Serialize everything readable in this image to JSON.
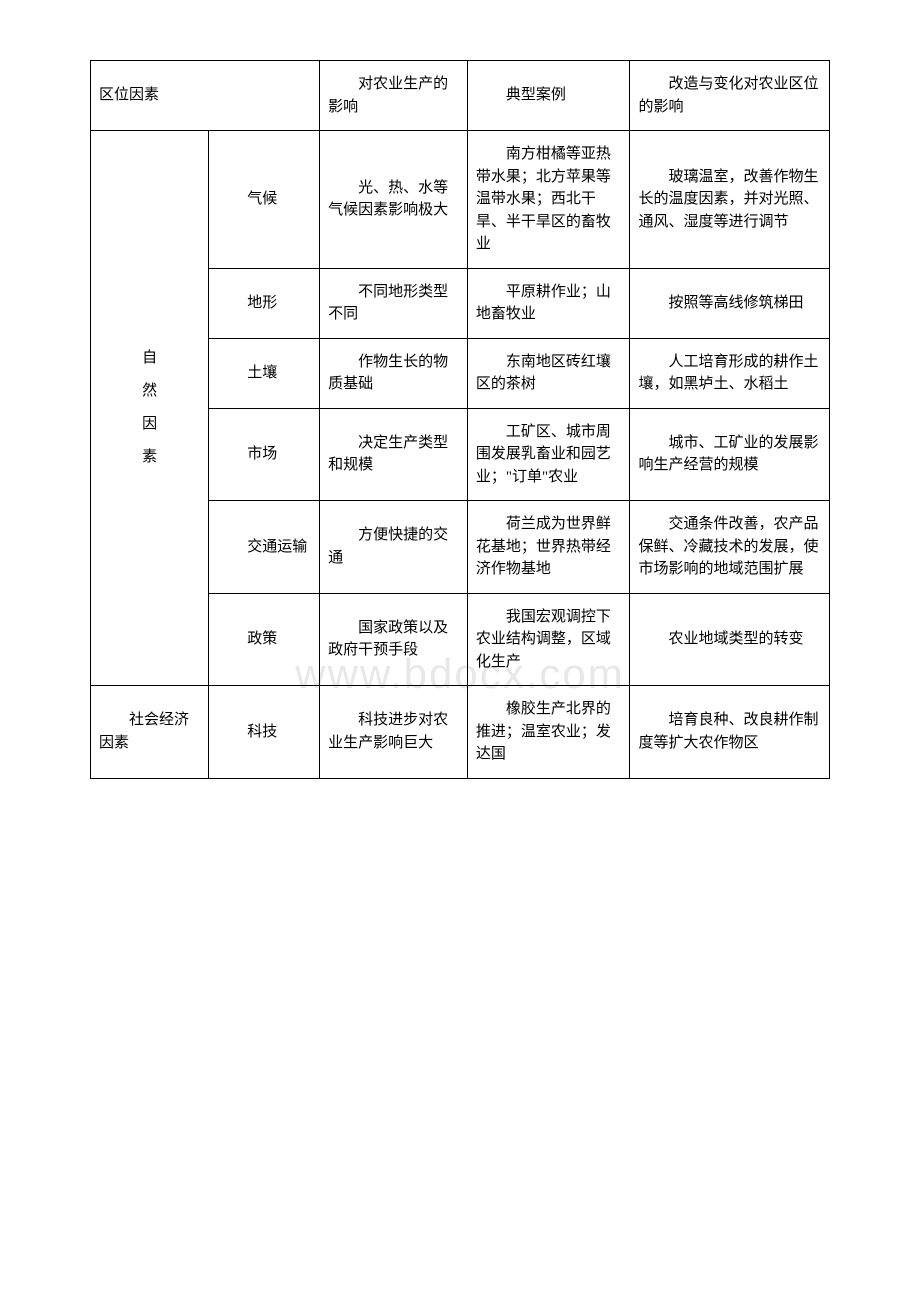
{
  "table": {
    "columns": {
      "col1_width": "16%",
      "col2_width": "15%",
      "col3_width": "20%",
      "col4_width": "22%",
      "col5_width": "27%"
    },
    "header": {
      "c12": "区位因素",
      "c3": "　　对农业生产的影响",
      "c4": "　　典型案例",
      "c5": "　　改造与变化对农业区位的影响"
    },
    "group1_label": "自\n然\n因\n素",
    "group2_label": "　　社会经济因素",
    "rows": [
      {
        "c2": "　　气候",
        "c3": "　　光、热、水等气候因素影响极大",
        "c4": "　　南方柑橘等亚热带水果；北方苹果等温带水果；西北干旱、半干旱区的畜牧业",
        "c5": "　　玻璃温室，改善作物生长的温度因素，并对光照、通风、湿度等进行调节"
      },
      {
        "c2": "　　地形",
        "c3": "　　不同地形类型不同",
        "c4": "　　平原耕作业；山地畜牧业",
        "c5": "　　按照等高线修筑梯田"
      },
      {
        "c2": "　　土壤",
        "c3": "　　作物生长的物质基础",
        "c4": "　　东南地区砖红壤区的茶树",
        "c5": "　　人工培育形成的耕作土壤，如黑垆土、水稻土"
      },
      {
        "c2": "　　市场",
        "c3": "　　决定生产类型和规模",
        "c4": "　　工矿区、城市周围发展乳畜业和园艺业；\"订单\"农业",
        "c5": "　　城市、工矿业的发展影响生产经营的规模"
      },
      {
        "c2": "　　交通运输",
        "c3": "　　方便快捷的交通",
        "c4": "　　荷兰成为世界鲜花基地；世界热带经济作物基地",
        "c5": "　　交通条件改善，农产品保鲜、冷藏技术的发展，使市场影响的地域范围扩展"
      },
      {
        "c2": "　　政策",
        "c3": "　　国家政策以及政府干预手段",
        "c4": "　　我国宏观调控下农业结构调整，区域化生产",
        "c5": "　　农业地域类型的转变"
      },
      {
        "c2": "　　科技",
        "c3": "　　科技进步对农业生产影响巨大",
        "c4": "　　橡胶生产北界的推进；温室农业；发达国",
        "c5": "　　培育良种、改良耕作制度等扩大农作物区"
      }
    ],
    "border_color": "#000000",
    "background_color": "#ffffff",
    "text_color": "#000000",
    "font_size": 15,
    "font_family": "SimSun"
  },
  "watermark": {
    "text": "www.bdocx.com",
    "color": "#e8e8e8",
    "font_size": 42
  }
}
